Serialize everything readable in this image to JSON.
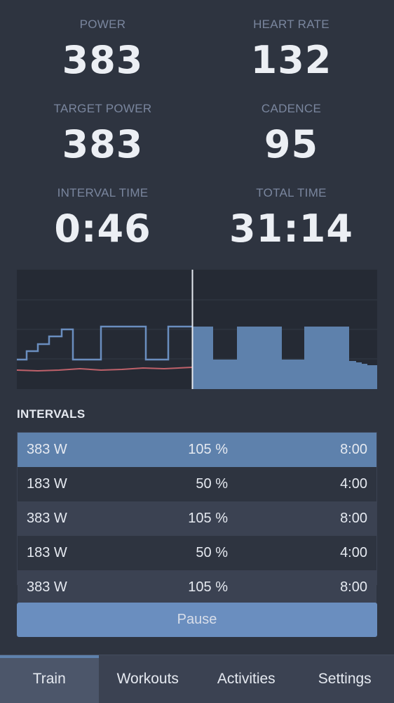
{
  "metrics": {
    "power": {
      "label": "POWER",
      "value": "383"
    },
    "heart_rate": {
      "label": "HEART RATE",
      "value": "132"
    },
    "target_power": {
      "label": "TARGET POWER",
      "value": "383"
    },
    "cadence": {
      "label": "CADENCE",
      "value": "95"
    },
    "interval_time": {
      "label": "INTERVAL TIME",
      "value": "0:46"
    },
    "total_time": {
      "label": "TOTAL TIME",
      "value": "31:14"
    }
  },
  "intervals": {
    "title": "INTERVALS",
    "rows": [
      {
        "power": "383 W",
        "percent": "105 %",
        "duration": "8:00",
        "active": true
      },
      {
        "power": "183 W",
        "percent": "50 %",
        "duration": "4:00"
      },
      {
        "power": "383 W",
        "percent": "105 %",
        "duration": "8:00"
      },
      {
        "power": "183 W",
        "percent": "50 %",
        "duration": "4:00"
      },
      {
        "power": "383 W",
        "percent": "105 %",
        "duration": "8:00"
      }
    ]
  },
  "pause_label": "Pause",
  "nav": {
    "tabs": [
      {
        "label": "Train",
        "active": true
      },
      {
        "label": "Workouts"
      },
      {
        "label": "Activities"
      },
      {
        "label": "Settings"
      }
    ]
  },
  "colors": {
    "accent": "#5e81ac",
    "workout_fill": "#5e81ac",
    "target_line": "#6a8ebf",
    "heart_rate_line": "#bf616a",
    "playhead": "#e5e9f0"
  }
}
